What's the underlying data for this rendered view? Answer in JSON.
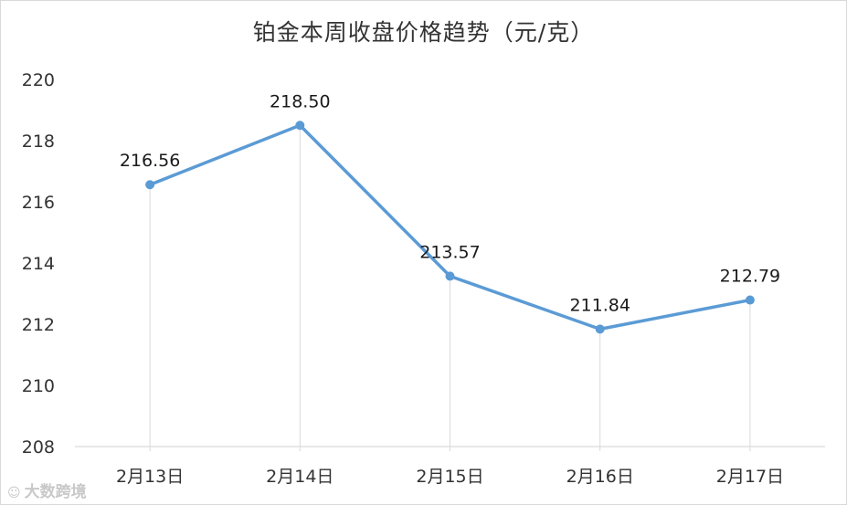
{
  "chart_data": {
    "type": "line",
    "title": "铂金本周收盘价格趋势（元/克）",
    "categories": [
      "2月13日",
      "2月14日",
      "2月15日",
      "2月16日",
      "2月17日"
    ],
    "series": [
      {
        "values": [
          216.56,
          218.5,
          213.57,
          211.84,
          212.79
        ]
      }
    ],
    "data_labels": [
      "216.56",
      "218.50",
      "213.57",
      "211.84",
      "212.79"
    ],
    "yticks": [
      208,
      210,
      212,
      214,
      216,
      218,
      220
    ],
    "ylim": [
      208,
      220
    ],
    "grid": "vertical drop lines at each category",
    "legend": "none",
    "line_color": "#5b9bd5"
  },
  "watermark": {
    "text": "大数跨境"
  }
}
